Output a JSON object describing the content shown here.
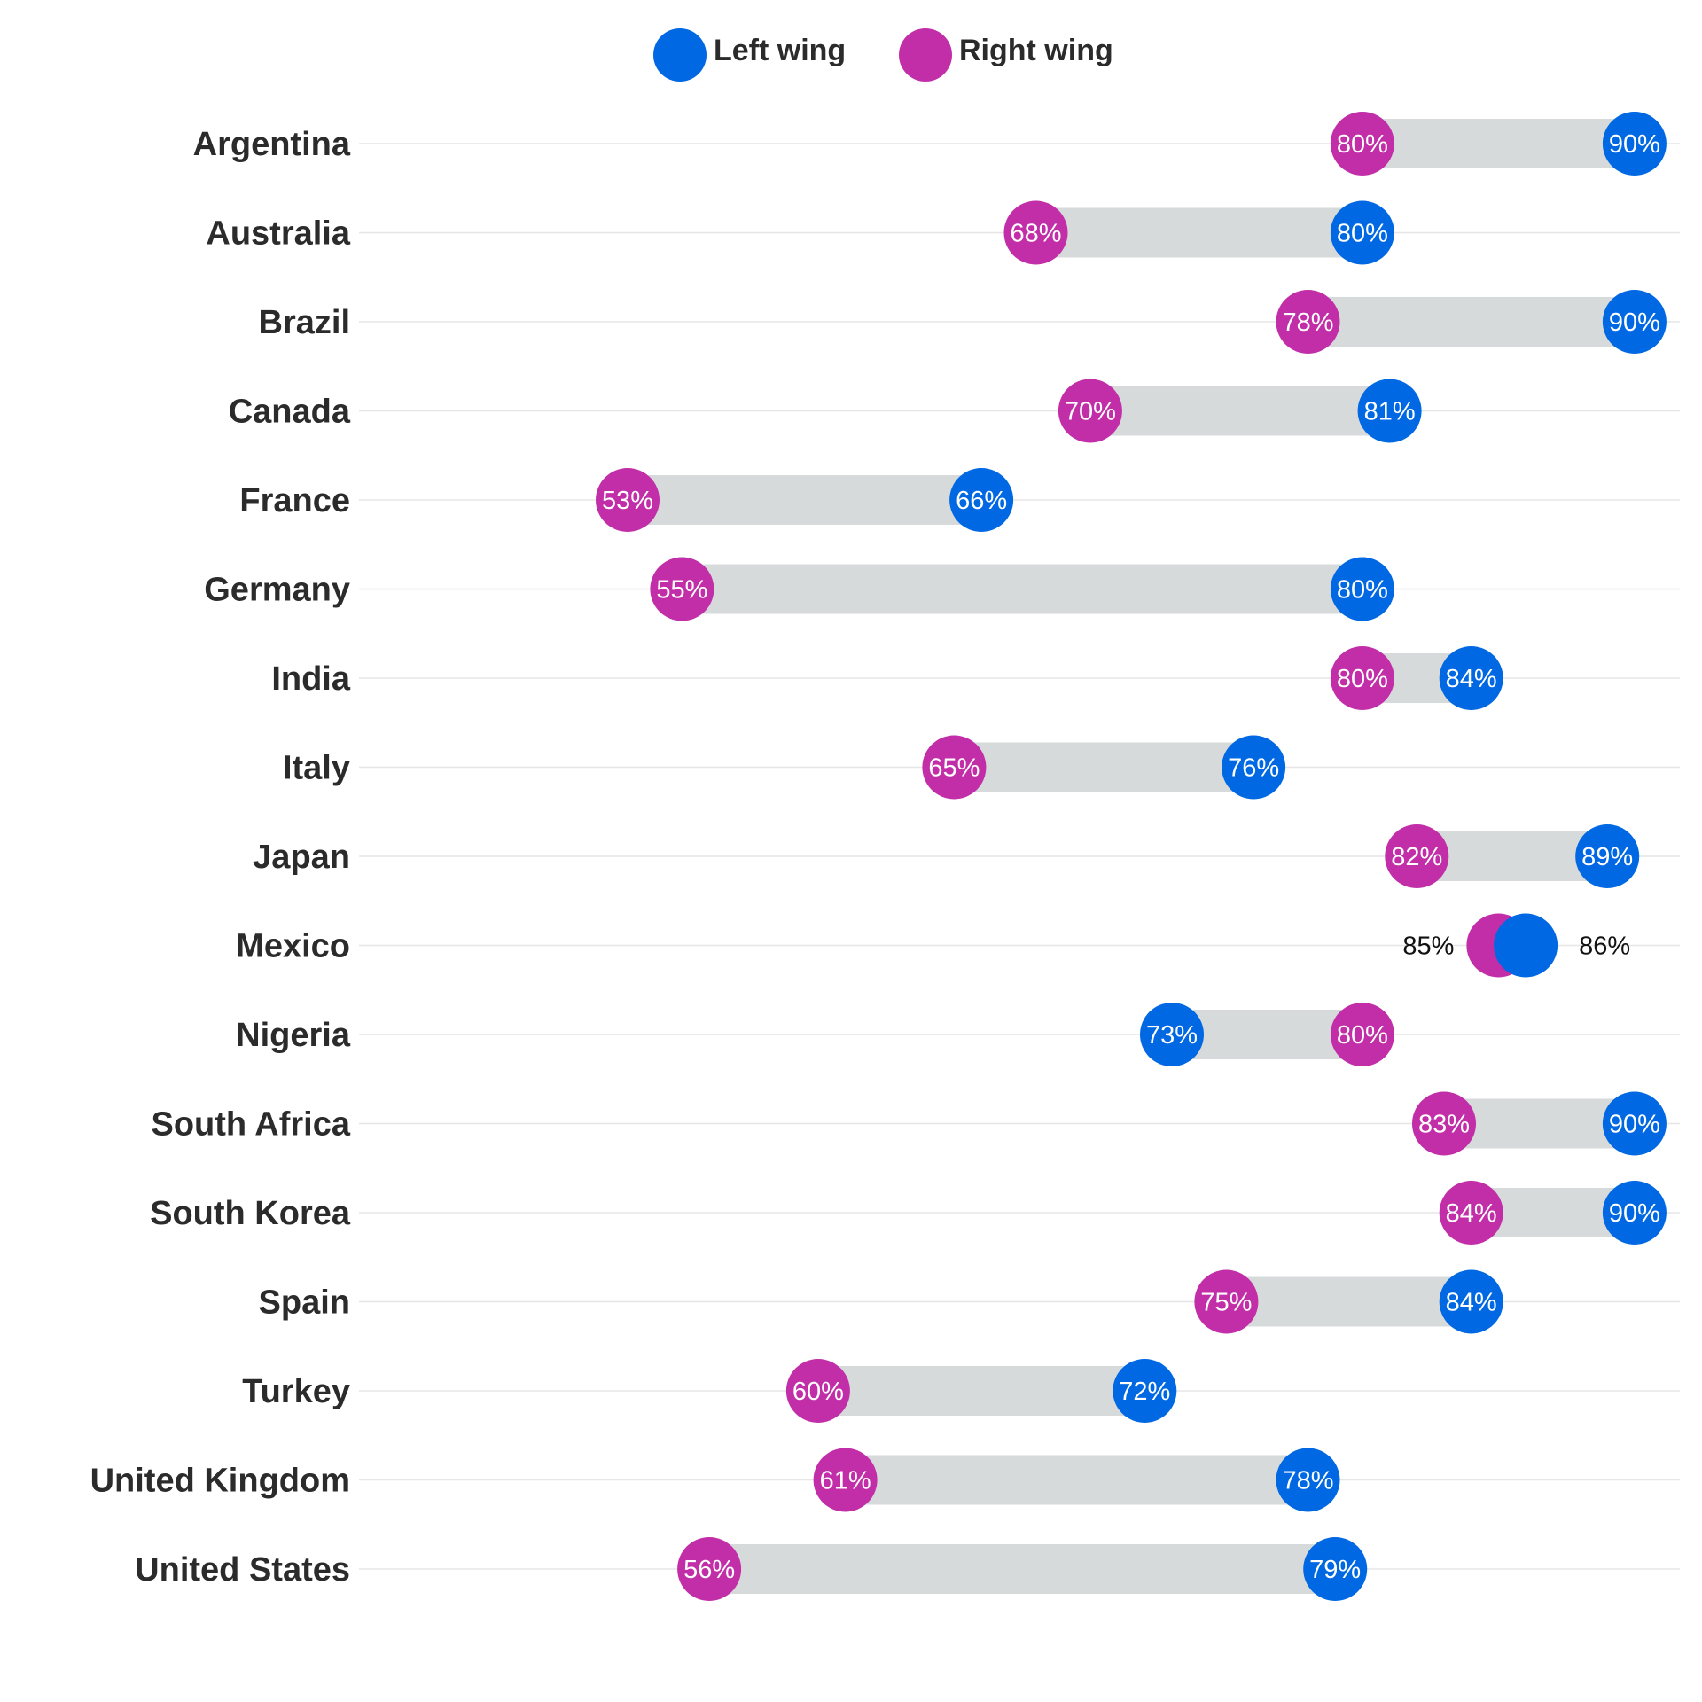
{
  "legend": {
    "left_label": "Left wing",
    "right_label": "Right wing"
  },
  "colors": {
    "left": "#0068e2",
    "right": "#c22ea8",
    "bar": "#d7dadb",
    "grid": "#e6e6e6"
  },
  "chart_data": {
    "type": "dumbbell",
    "xlim": [
      40,
      100
    ],
    "series": [
      {
        "name": "Left wing",
        "color": "#0068e2"
      },
      {
        "name": "Right wing",
        "color": "#c22ea8"
      }
    ],
    "categories": [
      "Argentina",
      "Australia",
      "Brazil",
      "Canada",
      "France",
      "Germany",
      "India",
      "Italy",
      "Japan",
      "Mexico",
      "Nigeria",
      "South Africa",
      "South Korea",
      "Spain",
      "Turkey",
      "United Kingdom",
      "United States"
    ],
    "rows": [
      {
        "country": "Argentina",
        "left": 90,
        "right": 80,
        "left_label": "90%",
        "right_label": "80%"
      },
      {
        "country": "Australia",
        "left": 80,
        "right": 68,
        "left_label": "80%",
        "right_label": "68%"
      },
      {
        "country": "Brazil",
        "left": 90,
        "right": 78,
        "left_label": "90%",
        "right_label": "78%"
      },
      {
        "country": "Canada",
        "left": 81,
        "right": 70,
        "left_label": "81%",
        "right_label": "70%"
      },
      {
        "country": "France",
        "left": 66,
        "right": 53,
        "left_label": "66%",
        "right_label": "53%"
      },
      {
        "country": "Germany",
        "left": 80,
        "right": 55,
        "left_label": "80%",
        "right_label": "55%"
      },
      {
        "country": "India",
        "left": 84,
        "right": 80,
        "left_label": "84%",
        "right_label": "80%"
      },
      {
        "country": "Italy",
        "left": 76,
        "right": 65,
        "left_label": "76%",
        "right_label": "65%"
      },
      {
        "country": "Japan",
        "left": 89,
        "right": 82,
        "left_label": "89%",
        "right_label": "82%"
      },
      {
        "country": "Mexico",
        "left": 86,
        "right": 85,
        "left_label": "86%",
        "right_label": "85%"
      },
      {
        "country": "Nigeria",
        "left": 73,
        "right": 80,
        "left_label": "73%",
        "right_label": "80%"
      },
      {
        "country": "South Africa",
        "left": 90,
        "right": 83,
        "left_label": "90%",
        "right_label": "83%"
      },
      {
        "country": "South Korea",
        "left": 90,
        "right": 84,
        "left_label": "90%",
        "right_label": "84%"
      },
      {
        "country": "Spain",
        "left": 84,
        "right": 75,
        "left_label": "84%",
        "right_label": "75%"
      },
      {
        "country": "Turkey",
        "left": 72,
        "right": 60,
        "left_label": "72%",
        "right_label": "60%"
      },
      {
        "country": "United Kingdom",
        "left": 78,
        "right": 61,
        "left_label": "78%",
        "right_label": "61%"
      },
      {
        "country": "United States",
        "left": 79,
        "right": 56,
        "left_label": "79%",
        "right_label": "56%"
      }
    ]
  }
}
